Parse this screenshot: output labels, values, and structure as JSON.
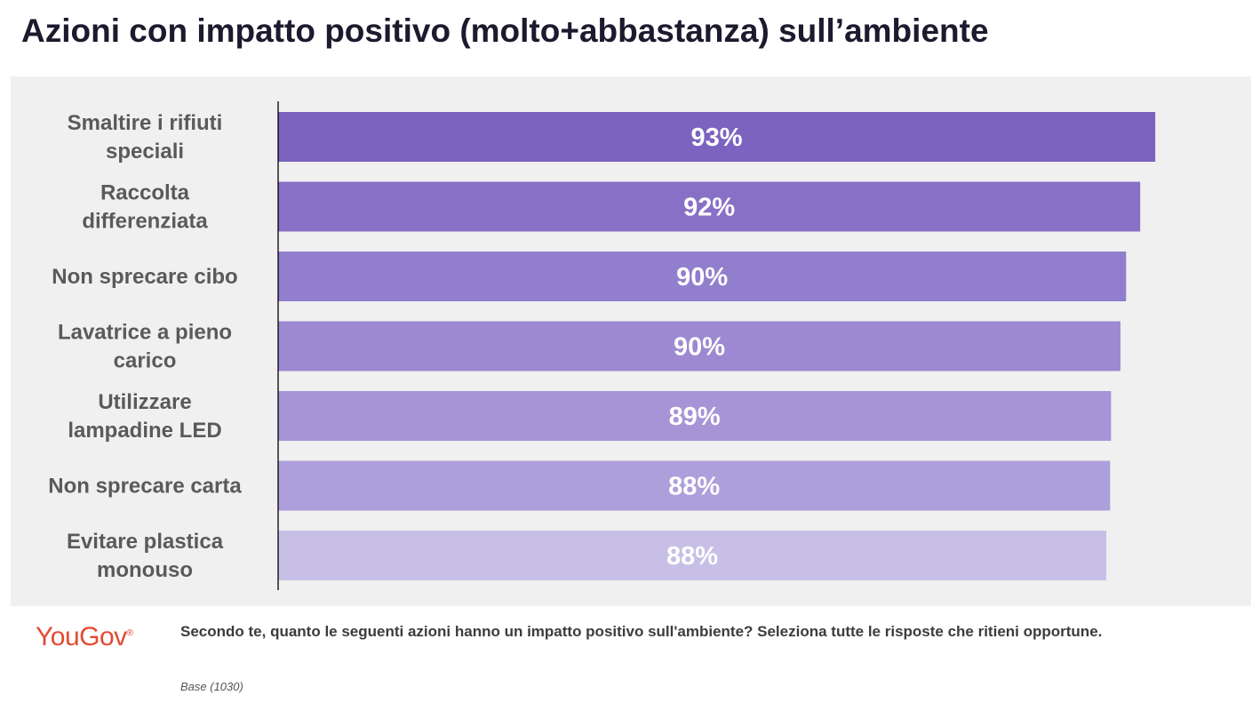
{
  "header": {
    "title": "Azioni con impatto positivo (molto+abbastanza) sull’ambiente"
  },
  "footer": {
    "brand": "YouGov",
    "brand_mark": "®",
    "question": "Secondo te, quanto le seguenti azioni hanno un impatto positivo sull'ambiente? Seleziona tutte le risposte che ritieni opportune.",
    "base": "Base (1030)"
  },
  "colors": {
    "panel": "#f0f0f0",
    "axis": "#000000",
    "bar_gradient": [
      "#7b63bf",
      "#8870c6",
      "#917ecc",
      "#9d89d2",
      "#a595d6",
      "#ad9fdb",
      "#c8bfe6"
    ]
  },
  "chart_data": {
    "type": "bar",
    "orientation": "horizontal",
    "title": "Azioni con impatto positivo (molto+abbastanza) sull’ambiente",
    "categories": [
      [
        "Smaltire i rifiuti",
        "speciali"
      ],
      [
        "Raccolta",
        "differenziata"
      ],
      [
        "Non sprecare cibo"
      ],
      [
        "Lavatrice a pieno",
        "carico"
      ],
      [
        "Utilizzare",
        "lampadine LED"
      ],
      [
        "Non sprecare carta"
      ],
      [
        "Evitare plastica",
        "monouso"
      ]
    ],
    "values": [
      93.3,
      91.7,
      90.2,
      89.6,
      88.6,
      88.5,
      88.1
    ],
    "value_labels": [
      "93%",
      "92%",
      "90%",
      "90%",
      "89%",
      "88%",
      "88%"
    ],
    "xlim": [
      0,
      100
    ],
    "grid": false,
    "legend": "none"
  }
}
